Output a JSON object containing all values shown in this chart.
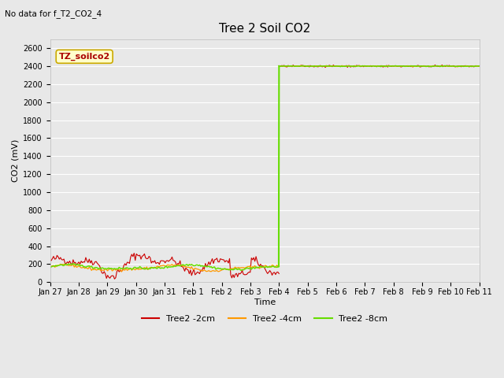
{
  "title": "Tree 2 Soil CO2",
  "no_data_label": "No data for f_T2_CO2_4",
  "ylabel": "CO2 (mV)",
  "xlabel": "Time",
  "yticks": [
    0,
    200,
    400,
    600,
    800,
    1000,
    1200,
    1400,
    1600,
    1800,
    2000,
    2200,
    2400,
    2600
  ],
  "ylim": [
    0,
    2700
  ],
  "bg_color": "#e8e8e8",
  "legend_label": "TZ_soilco2",
  "series": {
    "red": {
      "label": "Tree2 -2cm",
      "color": "#cc0000"
    },
    "orange": {
      "label": "Tree2 -4cm",
      "color": "#ff9900"
    },
    "green": {
      "label": "Tree2 -8cm",
      "color": "#66dd00"
    }
  },
  "xtick_labels": [
    "Jan 27",
    "Jan 28",
    "Jan 29",
    "Jan 30",
    "Jan 31",
    "Feb 1",
    "Feb 2",
    "Feb 3",
    "Feb 4",
    "Feb 5",
    "Feb 6",
    "Feb 7",
    "Feb 8",
    "Feb 9",
    "Feb 10",
    "Feb 11"
  ],
  "jump_day": 8,
  "title_fontsize": 11,
  "axis_fontsize": 8,
  "tick_fontsize": 7,
  "ylabel_fontsize": 8
}
